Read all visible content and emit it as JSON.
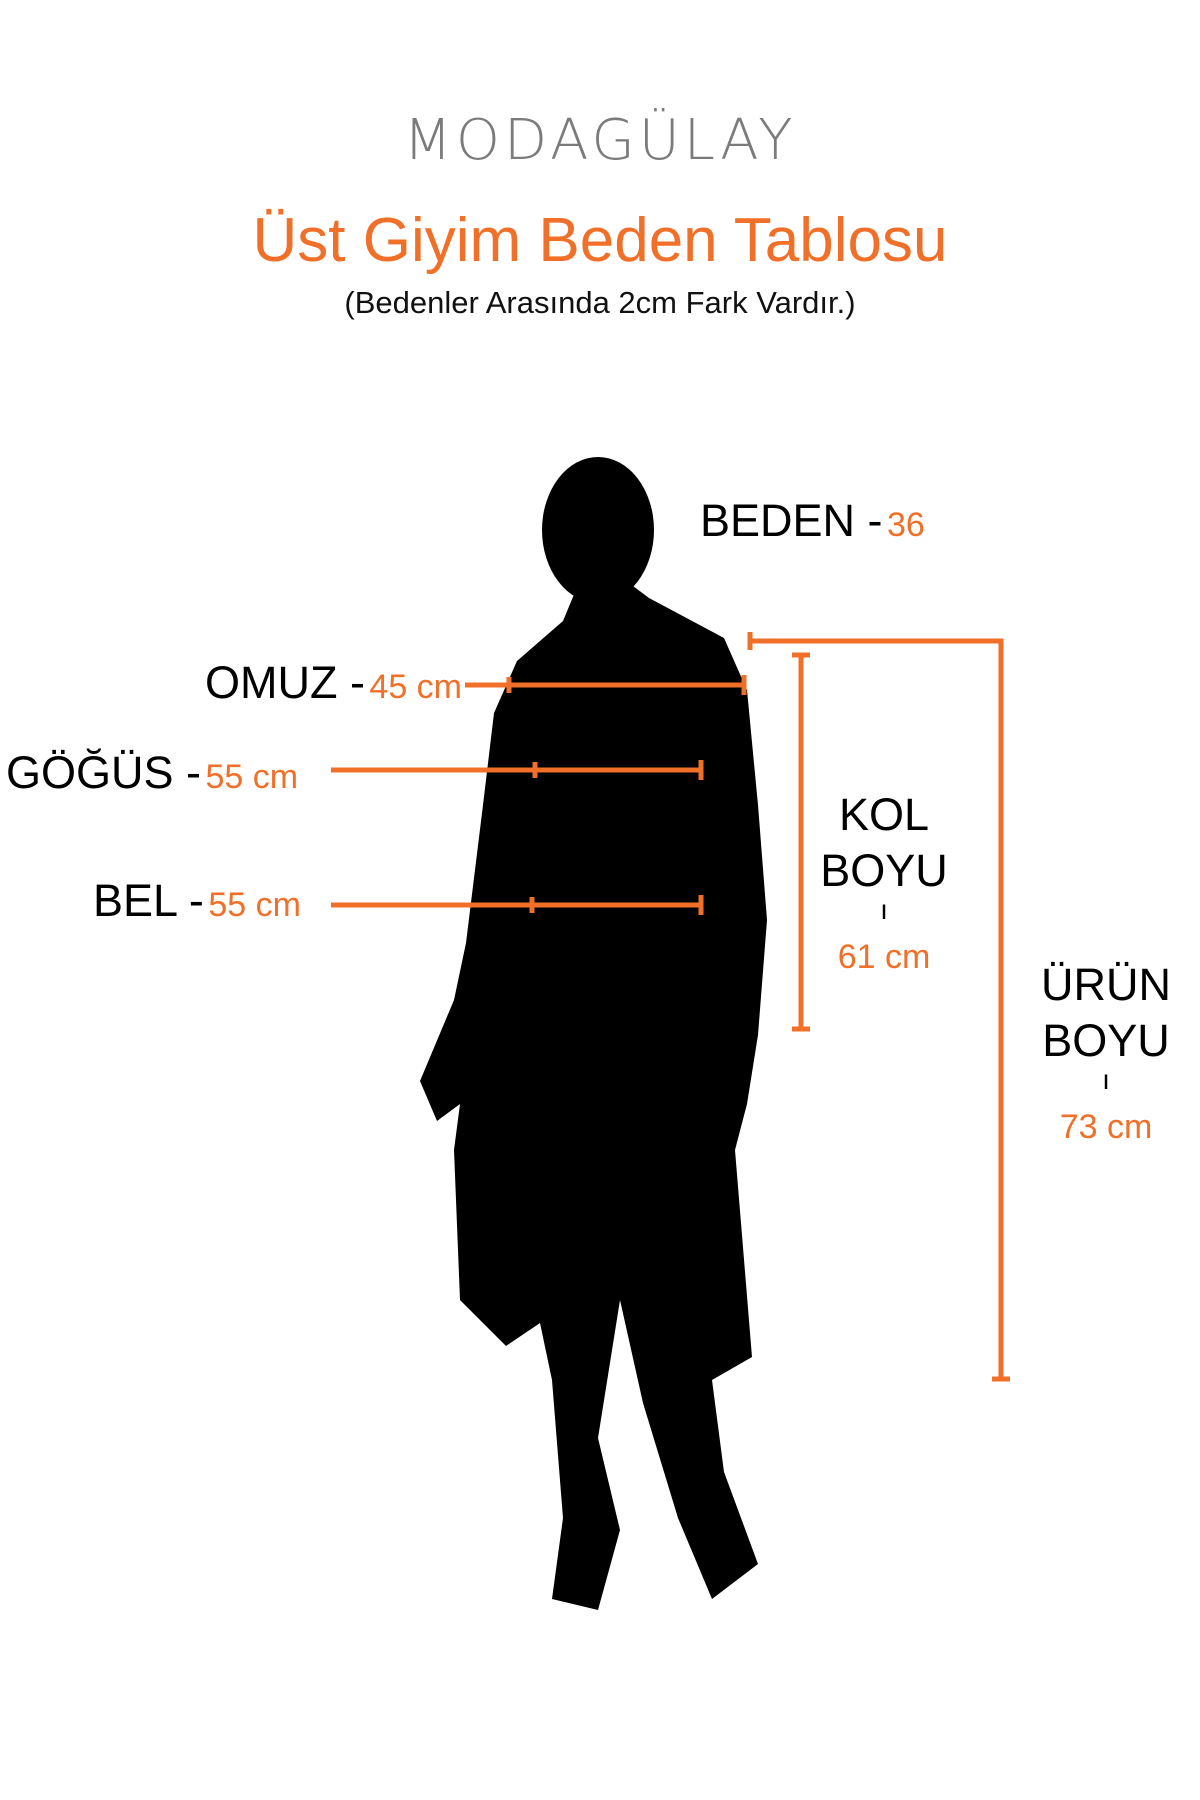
{
  "brand": {
    "logo": "MODAGÜLAY"
  },
  "header": {
    "title": "Üst Giyim Beden Tablosu",
    "subtitle": "(Bedenler Arasında 2cm Fark Vardır.)"
  },
  "accent_color": "#f07029",
  "size": {
    "label": "BEDEN -",
    "value": "36"
  },
  "measurements": {
    "shoulder": {
      "label": "OMUZ -",
      "value": "45 cm"
    },
    "chest": {
      "label": "GÖĞÜS -",
      "value": "55 cm"
    },
    "waist": {
      "label": "BEL -",
      "value": "55 cm"
    },
    "sleeve": {
      "label_line1": "KOL",
      "label_line2": "BOYU",
      "separator": "ı",
      "value": "61 cm"
    },
    "length": {
      "label_line1": "ÜRÜN",
      "label_line2": "BOYU",
      "separator": "ı",
      "value": "73 cm"
    }
  }
}
